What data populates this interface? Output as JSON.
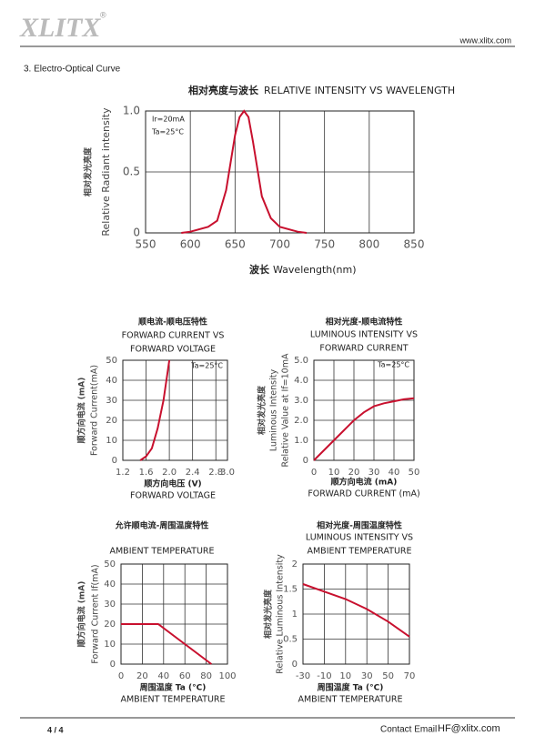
{
  "header": {
    "logo": "XLITX",
    "mark": "®",
    "url": "www.xlitx.com"
  },
  "section_title": "3. Electro-Optical Curve",
  "chart_data": [
    {
      "type": "line",
      "title_cn": "相对亮度与波长",
      "title": [
        "RELATIVE INTENSITY VS WAVELENGTH"
      ],
      "xlabel": [
        "波长",
        "Wavelength(nm)"
      ],
      "ylabel": [
        "相对发光亮度",
        "Relative Radiant intensity"
      ],
      "annotations": [
        "Ir=20mA",
        "Ta=25°C"
      ],
      "color": "#c8102e",
      "grid": true,
      "x": [
        590,
        600,
        620,
        630,
        640,
        650,
        655,
        660,
        665,
        670,
        680,
        690,
        700,
        720,
        730
      ],
      "values": [
        0,
        0.01,
        0.05,
        0.1,
        0.35,
        0.8,
        0.95,
        1.0,
        0.95,
        0.75,
        0.3,
        0.12,
        0.05,
        0.01,
        0
      ],
      "xlim": [
        550,
        850
      ],
      "xticks": [
        550,
        600,
        650,
        700,
        750,
        800,
        850
      ],
      "ylim": [
        0,
        1
      ],
      "yticks": [
        0,
        0.5,
        {
          "value": 1,
          "label": "1.0"
        }
      ]
    },
    {
      "type": "line",
      "title_cn": "顺电流-顺电压特性",
      "title": [
        "FORWARD CURRENT VS",
        "FORWARD VOLTAGE"
      ],
      "xlabel": [
        "顺方向电压 (V)",
        "FORWARD VOLTAGE"
      ],
      "ylabel": [
        "顺方向电流 (mA)",
        "Forward Current(mA)"
      ],
      "annotations": [
        "Ta=25°C"
      ],
      "color": "#c8102e",
      "grid": true,
      "x": [
        1.5,
        1.6,
        1.7,
        1.8,
        1.9,
        2.0
      ],
      "values": [
        0,
        2,
        6,
        16,
        30,
        50
      ],
      "xlim": [
        1.2,
        3.0
      ],
      "xticks": [
        1.2,
        1.6,
        {
          "value": 2,
          "label": "2.0"
        },
        2.4,
        2.8,
        {
          "value": 3,
          "label": "3.0"
        }
      ],
      "ylim": [
        0,
        50
      ],
      "yticks": [
        0,
        10,
        20,
        30,
        40,
        50
      ]
    },
    {
      "type": "line",
      "title_cn": "相对光度-顺电流特性",
      "title": [
        "LUMINOUS INTENSITY VS",
        "FORWARD CURRENT"
      ],
      "xlabel": [
        "顺方向电流 (mA)",
        "FORWARD CURRENT (mA)"
      ],
      "ylabel": [
        "相对发光亮度",
        "Luminous Intensity",
        "Relative Value at If=10mA"
      ],
      "annotations": [
        "Ta=25°C"
      ],
      "color": "#c8102e",
      "grid": true,
      "x": [
        0,
        5,
        10,
        15,
        20,
        25,
        30,
        35,
        40,
        45,
        50
      ],
      "values": [
        0,
        0.5,
        1.0,
        1.5,
        2.0,
        2.4,
        2.7,
        2.85,
        2.95,
        3.05,
        3.1
      ],
      "xlim": [
        0,
        50
      ],
      "xticks": [
        0,
        10,
        20,
        30,
        40,
        50
      ],
      "ylim": [
        0,
        5
      ],
      "yticks": [
        0,
        {
          "value": 1,
          "label": "1.0"
        },
        {
          "value": 2,
          "label": "2.0"
        },
        {
          "value": 3,
          "label": "3.0"
        },
        {
          "value": 4,
          "label": "4.0"
        },
        {
          "value": 5,
          "label": "5.0"
        }
      ]
    },
    {
      "type": "line",
      "title_cn": "允许顺电流-周围温度特性",
      "title": [
        "AMBIENT TEMPERATURE"
      ],
      "xlabel": [
        "周围温度 Ta (°C)",
        "AMBIENT TEMPERATURE"
      ],
      "ylabel": [
        "顺方向电流 (mA)",
        "Forward Current If(mA)"
      ],
      "annotations": [],
      "color": "#c8102e",
      "grid": true,
      "x": [
        0,
        35,
        85
      ],
      "values": [
        20,
        20,
        0
      ],
      "xlim": [
        0,
        100
      ],
      "xticks": [
        0,
        20,
        40,
        60,
        80,
        100
      ],
      "ylim": [
        0,
        50
      ],
      "yticks": [
        0,
        10,
        20,
        30,
        40,
        50
      ]
    },
    {
      "type": "line",
      "title_cn": "相对光度-周围温度特性",
      "title": [
        "LUMINOUS INTENSITY VS",
        "AMBIENT TEMPERATURE"
      ],
      "xlabel": [
        "周围温度 Ta (°C)",
        "AMBIENT TEMPERATURE"
      ],
      "ylabel": [
        "相对发光亮度",
        "Relative Luminous Intensity"
      ],
      "annotations": [],
      "color": "#c8102e",
      "grid": true,
      "x": [
        -30,
        -10,
        10,
        30,
        50,
        70
      ],
      "values": [
        1.6,
        1.45,
        1.3,
        1.1,
        0.85,
        0.55
      ],
      "xlim": [
        -30,
        70
      ],
      "xticks": [
        -30,
        -10,
        10,
        30,
        50,
        70
      ],
      "ylim": [
        0,
        2
      ],
      "yticks": [
        0,
        0.5,
        1,
        1.5,
        2
      ]
    }
  ],
  "footer": {
    "page": "4 / 4",
    "contact_label": "Contact Email",
    "email": "HF@xlitx.com"
  }
}
